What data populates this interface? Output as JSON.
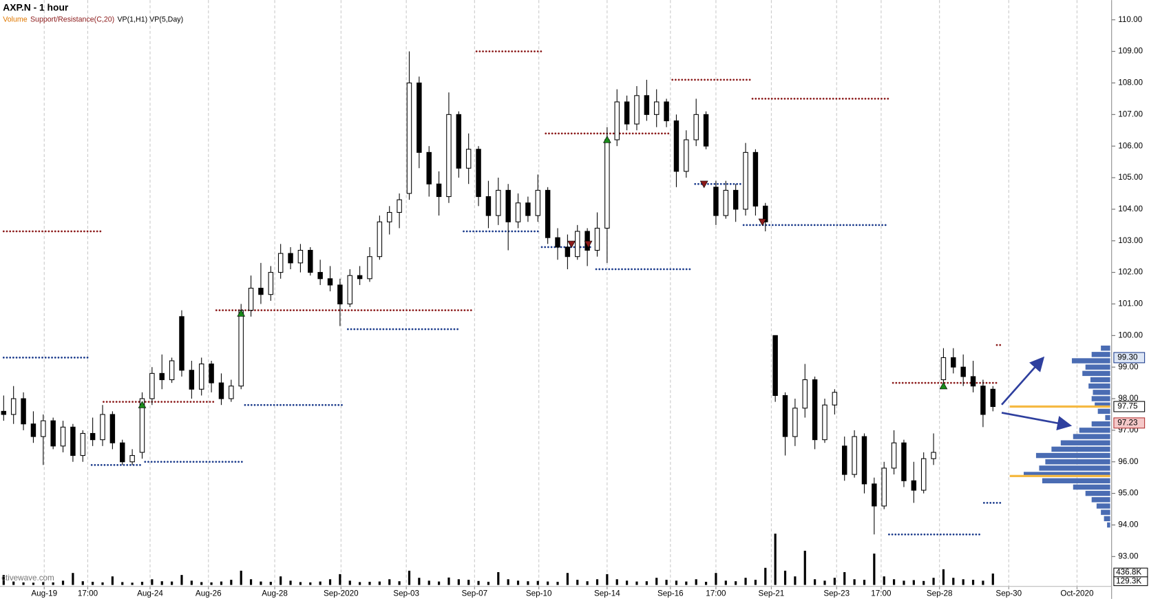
{
  "chart_data": {
    "type": "candlestick",
    "title": "AXP.N - 1 hour",
    "indicators": [
      {
        "name": "Volume",
        "color": "#e07800"
      },
      {
        "name": "Support/Resistance(C,20)",
        "color": "#8b1a1a"
      },
      {
        "name": "VP(1,H1) VP(5,Day)",
        "color": "#000000"
      }
    ],
    "watermark": "ctivewave.com",
    "xlim": [
      0,
      112
    ],
    "xticks": [
      {
        "value": 4.1,
        "label": "Aug-19"
      },
      {
        "value": 8.5,
        "label": "17:00"
      },
      {
        "value": 14.8,
        "label": "Aug-24"
      },
      {
        "value": 20.7,
        "label": "Aug-26"
      },
      {
        "value": 27.4,
        "label": "Aug-28"
      },
      {
        "value": 34.1,
        "label": "Sep-2020"
      },
      {
        "value": 40.7,
        "label": "Sep-03"
      },
      {
        "value": 47.6,
        "label": "Sep-07"
      },
      {
        "value": 54.1,
        "label": "Sep-10"
      },
      {
        "value": 61.0,
        "label": "Sep-14"
      },
      {
        "value": 67.4,
        "label": "Sep-16"
      },
      {
        "value": 72.0,
        "label": "17:00"
      },
      {
        "value": 77.6,
        "label": "Sep-21"
      },
      {
        "value": 84.2,
        "label": "Sep-23"
      },
      {
        "value": 88.7,
        "label": "17:00"
      },
      {
        "value": 94.6,
        "label": "Sep-28"
      },
      {
        "value": 101.6,
        "label": "Sep-30"
      },
      {
        "value": 108.5,
        "label": "Oct-2020"
      }
    ],
    "ylim": [
      92.1,
      110.6
    ],
    "yticks": [
      {
        "value": 93,
        "label": "93.00"
      },
      {
        "value": 94,
        "label": "94.00"
      },
      {
        "value": 95,
        "label": "95.00"
      },
      {
        "value": 96,
        "label": "96.00"
      },
      {
        "value": 97,
        "label": "97.00"
      },
      {
        "value": 98,
        "label": "98.00"
      },
      {
        "value": 99,
        "label": "99.00"
      },
      {
        "value": 100,
        "label": "100.00"
      },
      {
        "value": 101,
        "label": "101.00"
      },
      {
        "value": 102,
        "label": "102.00"
      },
      {
        "value": 103,
        "label": "103.00"
      },
      {
        "value": 104,
        "label": "104.00"
      },
      {
        "value": 105,
        "label": "105.00"
      },
      {
        "value": 106,
        "label": "106.00"
      },
      {
        "value": 107,
        "label": "107.00"
      },
      {
        "value": 108,
        "label": "108.00"
      },
      {
        "value": 109,
        "label": "109.00"
      },
      {
        "value": 110,
        "label": "110.00"
      }
    ],
    "grid": true,
    "up_color": "#ffffff",
    "down_color": "#000000",
    "candles": [
      [
        97.6,
        98.1,
        97.3,
        97.5
      ],
      [
        97.5,
        98.4,
        97.2,
        98.0
      ],
      [
        98.0,
        98.2,
        97.0,
        97.2
      ],
      [
        97.2,
        97.6,
        96.6,
        96.8
      ],
      [
        96.8,
        97.5,
        95.9,
        97.3
      ],
      [
        97.3,
        97.4,
        96.4,
        96.5
      ],
      [
        96.5,
        97.3,
        96.3,
        97.1
      ],
      [
        97.1,
        97.2,
        96.0,
        96.2
      ],
      [
        96.2,
        97.0,
        96.0,
        96.9
      ],
      [
        96.9,
        97.4,
        96.5,
        96.7
      ],
      [
        96.7,
        97.8,
        96.5,
        97.5
      ],
      [
        97.5,
        97.6,
        96.4,
        96.6
      ],
      [
        96.6,
        96.7,
        95.9,
        96.0
      ],
      [
        96.0,
        96.4,
        95.9,
        96.2
      ],
      [
        96.3,
        98.2,
        96.1,
        98.0
      ],
      [
        98.0,
        99.0,
        97.8,
        98.8
      ],
      [
        98.8,
        99.4,
        98.3,
        98.6
      ],
      [
        98.6,
        99.3,
        98.5,
        99.2
      ],
      [
        100.6,
        100.8,
        98.7,
        98.9
      ],
      [
        98.9,
        99.2,
        98.0,
        98.3
      ],
      [
        98.3,
        99.3,
        98.1,
        99.1
      ],
      [
        99.1,
        99.2,
        98.2,
        98.5
      ],
      [
        98.5,
        98.8,
        97.8,
        98.0
      ],
      [
        98.0,
        98.6,
        97.9,
        98.4
      ],
      [
        98.4,
        101.0,
        98.3,
        100.8
      ],
      [
        100.8,
        101.9,
        100.6,
        101.5
      ],
      [
        101.5,
        102.3,
        101.0,
        101.3
      ],
      [
        101.3,
        102.2,
        101.1,
        102.0
      ],
      [
        102.0,
        102.9,
        101.8,
        102.6
      ],
      [
        102.6,
        102.8,
        102.1,
        102.3
      ],
      [
        102.3,
        102.9,
        102.0,
        102.7
      ],
      [
        102.7,
        102.8,
        101.9,
        102.0
      ],
      [
        102.0,
        102.4,
        101.6,
        101.8
      ],
      [
        101.8,
        102.2,
        101.4,
        101.6
      ],
      [
        101.6,
        101.8,
        100.3,
        101.0
      ],
      [
        101.0,
        102.1,
        100.9,
        101.9
      ],
      [
        101.9,
        102.2,
        101.6,
        101.8
      ],
      [
        101.8,
        102.8,
        101.7,
        102.5
      ],
      [
        102.5,
        103.8,
        102.4,
        103.6
      ],
      [
        103.6,
        104.1,
        103.2,
        103.9
      ],
      [
        103.9,
        104.5,
        103.4,
        104.3
      ],
      [
        104.5,
        109.0,
        104.3,
        108.0
      ],
      [
        108.0,
        108.2,
        105.3,
        105.8
      ],
      [
        105.8,
        106.0,
        104.4,
        104.8
      ],
      [
        104.8,
        105.2,
        103.8,
        104.4
      ],
      [
        104.4,
        107.7,
        104.2,
        107.0
      ],
      [
        107.0,
        107.1,
        105.0,
        105.3
      ],
      [
        105.3,
        106.4,
        104.8,
        105.9
      ],
      [
        105.9,
        106.0,
        104.1,
        104.4
      ],
      [
        104.4,
        104.9,
        103.4,
        103.8
      ],
      [
        103.8,
        105.0,
        103.5,
        104.6
      ],
      [
        104.6,
        104.8,
        102.7,
        103.6
      ],
      [
        103.6,
        104.5,
        103.4,
        104.2
      ],
      [
        104.2,
        104.4,
        103.6,
        103.8
      ],
      [
        103.8,
        105.1,
        103.6,
        104.6
      ],
      [
        104.6,
        104.7,
        102.9,
        103.1
      ],
      [
        103.1,
        103.4,
        102.4,
        102.8
      ],
      [
        102.8,
        103.2,
        102.1,
        102.5
      ],
      [
        102.5,
        103.5,
        102.4,
        103.3
      ],
      [
        103.3,
        103.4,
        102.2,
        102.7
      ],
      [
        102.7,
        103.9,
        102.5,
        103.4
      ],
      [
        103.4,
        106.6,
        102.3,
        106.2
      ],
      [
        106.2,
        107.8,
        106.0,
        107.4
      ],
      [
        107.4,
        107.6,
        106.5,
        106.7
      ],
      [
        106.7,
        107.9,
        106.5,
        107.6
      ],
      [
        107.6,
        108.1,
        106.8,
        107.0
      ],
      [
        107.0,
        107.8,
        106.6,
        107.4
      ],
      [
        107.4,
        107.5,
        106.6,
        106.8
      ],
      [
        106.8,
        107.0,
        104.7,
        105.2
      ],
      [
        105.2,
        106.5,
        105.0,
        106.2
      ],
      [
        106.2,
        107.5,
        106.0,
        107.0
      ],
      [
        107.0,
        107.1,
        105.9,
        106.0
      ],
      [
        104.7,
        104.9,
        103.5,
        103.8
      ],
      [
        103.8,
        104.9,
        103.7,
        104.6
      ],
      [
        104.6,
        104.8,
        103.6,
        104.0
      ],
      [
        104.0,
        106.1,
        103.8,
        105.8
      ],
      [
        105.8,
        105.9,
        103.8,
        104.1
      ],
      [
        104.1,
        104.2,
        103.3,
        103.6
      ],
      [
        100.0,
        100.0,
        97.9,
        98.1
      ],
      [
        98.1,
        98.2,
        96.2,
        96.8
      ],
      [
        96.8,
        98.0,
        96.5,
        97.7
      ],
      [
        97.7,
        99.1,
        97.4,
        98.6
      ],
      [
        98.6,
        98.7,
        96.4,
        96.7
      ],
      [
        96.7,
        98.0,
        96.6,
        97.8
      ],
      [
        97.8,
        98.3,
        97.5,
        98.2
      ],
      [
        96.5,
        96.8,
        95.4,
        95.6
      ],
      [
        95.6,
        97.0,
        95.5,
        96.8
      ],
      [
        96.8,
        96.9,
        95.0,
        95.3
      ],
      [
        95.3,
        95.5,
        93.7,
        94.6
      ],
      [
        94.6,
        96.0,
        94.5,
        95.8
      ],
      [
        95.8,
        97.0,
        95.6,
        96.6
      ],
      [
        96.6,
        96.7,
        95.2,
        95.4
      ],
      [
        95.4,
        96.0,
        94.7,
        95.1
      ],
      [
        95.1,
        96.3,
        95.0,
        96.1
      ],
      [
        96.1,
        96.9,
        95.9,
        96.3
      ],
      [
        98.6,
        99.6,
        98.5,
        99.3
      ],
      [
        99.3,
        99.6,
        98.8,
        99.0
      ],
      [
        99.0,
        99.4,
        98.4,
        98.7
      ],
      [
        98.7,
        99.2,
        98.2,
        98.4
      ],
      [
        98.4,
        98.6,
        97.1,
        97.5
      ],
      [
        98.3,
        98.4,
        97.6,
        97.75
      ]
    ],
    "volume_color": "#000000",
    "volumes": [
      350000,
      120000,
      90000,
      80000,
      100000,
      90000,
      150000,
      420000,
      130000,
      110000,
      90000,
      300000,
      100000,
      80000,
      110000,
      200000,
      130000,
      120000,
      350000,
      150000,
      100000,
      90000,
      120000,
      180000,
      500000,
      200000,
      120000,
      110000,
      300000,
      150000,
      100000,
      90000,
      120000,
      200000,
      380000,
      150000,
      100000,
      110000,
      120000,
      200000,
      130000,
      500000,
      250000,
      150000,
      120000,
      260000,
      200000,
      180000,
      140000,
      110000,
      450000,
      200000,
      150000,
      130000,
      140000,
      120000,
      110000,
      420000,
      180000,
      130000,
      200000,
      380000,
      200000,
      150000,
      120000,
      130000,
      250000,
      180000,
      150000,
      120000,
      200000,
      110000,
      420000,
      150000,
      130000,
      250000,
      180000,
      600000,
      1800000,
      500000,
      300000,
      1200000,
      200000,
      150000,
      250000,
      450000,
      200000,
      180000,
      1100000,
      300000,
      200000,
      150000,
      170000,
      140000,
      250000,
      550000,
      250000,
      200000,
      180000,
      150000,
      400000
    ],
    "vlim": [
      0,
      720000
    ],
    "vticks": [
      {
        "value": 436800,
        "label": "436.8K"
      },
      {
        "value": 129300,
        "label": "129.3K"
      }
    ],
    "resistance_color": "#8b1a1a",
    "support_color": "#1a3a8b",
    "resistance": [
      {
        "x": [
          0,
          9.9
        ],
        "y": 103.3
      },
      {
        "x": [
          10.1,
          21.3
        ],
        "y": 97.9
      },
      {
        "x": [
          21.5,
          47.4
        ],
        "y": 100.8
      },
      {
        "x": [
          47.8,
          54.6
        ],
        "y": 109.0
      },
      {
        "x": [
          54.8,
          67.4
        ],
        "y": 106.4
      },
      {
        "x": [
          67.6,
          75.6
        ],
        "y": 108.1
      },
      {
        "x": [
          75.7,
          89.6
        ],
        "y": 107.5
      },
      {
        "x": [
          89.9,
          100.5
        ],
        "y": 98.5
      },
      {
        "x": [
          100.4,
          100.9
        ],
        "y": 99.7
      }
    ],
    "support": [
      {
        "x": [
          0,
          8.7
        ],
        "y": 99.3
      },
      {
        "x": [
          8.9,
          14.1
        ],
        "y": 95.9
      },
      {
        "x": [
          14.3,
          24.1
        ],
        "y": 96.0
      },
      {
        "x": [
          24.4,
          34.5
        ],
        "y": 97.8
      },
      {
        "x": [
          34.8,
          46.2
        ],
        "y": 100.2
      },
      {
        "x": [
          46.5,
          54.3
        ],
        "y": 103.3
      },
      {
        "x": [
          54.4,
          59.4
        ],
        "y": 102.8
      },
      {
        "x": [
          59.9,
          69.6
        ],
        "y": 102.1
      },
      {
        "x": [
          69.9,
          74.6
        ],
        "y": 104.8
      },
      {
        "x": [
          74.8,
          89.3
        ],
        "y": 103.5
      },
      {
        "x": [
          89.5,
          98.9
        ],
        "y": 93.7
      },
      {
        "x": [
          99.1,
          100.9
        ],
        "y": 94.7
      }
    ],
    "buy_signals": {
      "color": "#1a8a1a",
      "x": [
        14,
        24,
        61,
        95
      ],
      "y": [
        97.8,
        100.7,
        106.2,
        98.4
      ]
    },
    "sell_signals": {
      "color": "#8b1a1a",
      "x": [
        57.4,
        59.1,
        70.8,
        76.7
      ],
      "y": [
        102.9,
        102.9,
        104.8,
        103.6
      ]
    },
    "volume_profile": {
      "color": "#4a6cb3",
      "prices": [
        94.0,
        94.2,
        94.4,
        94.6,
        94.8,
        95.0,
        95.2,
        95.4,
        95.6,
        95.8,
        96.0,
        96.2,
        96.4,
        96.6,
        96.8,
        97.0,
        97.2,
        97.4,
        97.6,
        97.8,
        98.0,
        98.2,
        98.4,
        98.6,
        98.8,
        99.0,
        99.2,
        99.4,
        99.6
      ],
      "values": [
        5,
        10,
        15,
        22,
        30,
        40,
        60,
        110,
        140,
        115,
        105,
        120,
        95,
        80,
        60,
        50,
        30,
        8,
        20,
        25,
        30,
        28,
        35,
        32,
        45,
        40,
        62,
        30,
        15
      ]
    },
    "poc_color": "#f5b942",
    "poc": [
      97.75,
      95.55
    ],
    "poc_start": 101.7,
    "price_markers": [
      {
        "value": 99.3,
        "label": "99.30",
        "border": "#1a3a8b",
        "fill": "#dde6f5"
      },
      {
        "value": 97.75,
        "label": "97.75",
        "border": "#000000",
        "fill": "#ffffff"
      },
      {
        "value": 97.23,
        "label": "97.23",
        "border": "#b03030",
        "fill": "#f5c8c8"
      }
    ]
  }
}
